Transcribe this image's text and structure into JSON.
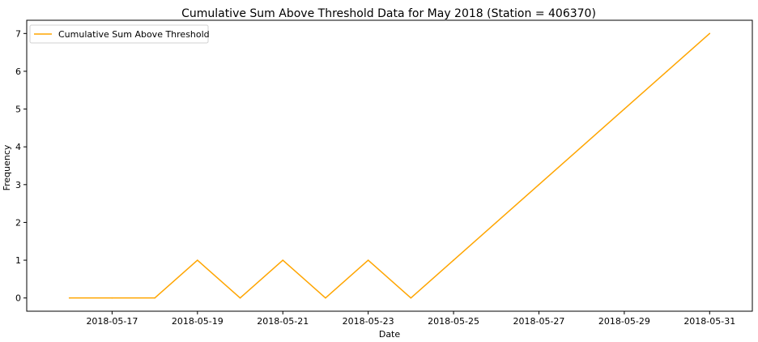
{
  "chart_data": {
    "type": "line",
    "title": "Cumulative Sum Above Threshold Data for May 2018 (Station = 406370)",
    "xlabel": "Date",
    "ylabel": "Frequency",
    "x": [
      "2018-05-16",
      "2018-05-17",
      "2018-05-18",
      "2018-05-19",
      "2018-05-20",
      "2018-05-21",
      "2018-05-22",
      "2018-05-23",
      "2018-05-24",
      "2018-05-25",
      "2018-05-26",
      "2018-05-27",
      "2018-05-28",
      "2018-05-29",
      "2018-05-30",
      "2018-05-31"
    ],
    "series": [
      {
        "name": "Cumulative Sum Above Threshold",
        "color": "#ffa500",
        "values": [
          0,
          0,
          0,
          1,
          0,
          1,
          0,
          1,
          0,
          1,
          2,
          3,
          4,
          5,
          6,
          7
        ]
      }
    ],
    "xticks": [
      "2018-05-17",
      "2018-05-19",
      "2018-05-21",
      "2018-05-23",
      "2018-05-25",
      "2018-05-27",
      "2018-05-29",
      "2018-05-31"
    ],
    "yticks": [
      0,
      1,
      2,
      3,
      4,
      5,
      6,
      7
    ],
    "xlim": [
      "2018-05-15",
      "2018-06-01"
    ],
    "ylim": [
      -0.35,
      7.35
    ],
    "grid": false,
    "legend_position": "top-left"
  }
}
